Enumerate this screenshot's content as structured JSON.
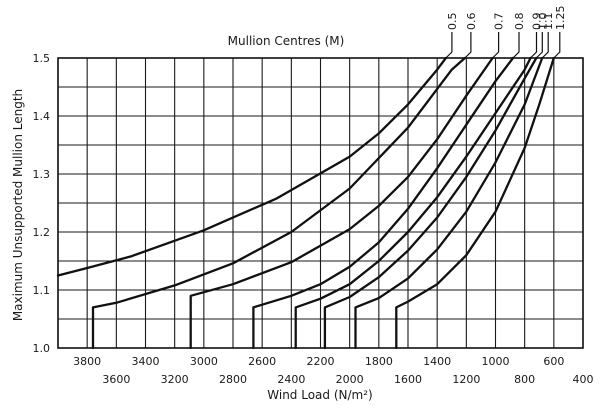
{
  "chart_data": {
    "type": "line",
    "title": "",
    "legend_title": "Mullion Centres (M)",
    "xlabel": "Wind Load (N/m²)",
    "ylabel": "Maximum Unsupported Mullion Length",
    "xlim": [
      4000,
      400
    ],
    "ylim": [
      1.0,
      1.5
    ],
    "x_reversed": true,
    "grid": true,
    "x_ticks_top_row": [
      3800,
      3400,
      3000,
      2600,
      2200,
      1800,
      1400,
      1000,
      600
    ],
    "x_ticks_bottom_row": [
      3600,
      3200,
      2800,
      2400,
      2000,
      1600,
      1200,
      800,
      400
    ],
    "y_ticks": [
      1.0,
      1.1,
      1.2,
      1.3,
      1.4,
      1.5
    ],
    "y_tick_labels": [
      "1.0",
      "1.1",
      "1.2",
      "1.3",
      "1.4",
      "1.5"
    ],
    "series": [
      {
        "name": "0.5",
        "points": [
          [
            4000,
            1.125
          ],
          [
            3800,
            1.138
          ],
          [
            3500,
            1.158
          ],
          [
            3000,
            1.203
          ],
          [
            2500,
            1.258
          ],
          [
            2000,
            1.33
          ],
          [
            1800,
            1.37
          ],
          [
            1600,
            1.42
          ],
          [
            1400,
            1.48
          ],
          [
            1340,
            1.5
          ]
        ]
      },
      {
        "name": "0.6",
        "points": [
          [
            3760,
            1.0
          ],
          [
            3760,
            1.07
          ],
          [
            3600,
            1.078
          ],
          [
            3200,
            1.108
          ],
          [
            2800,
            1.146
          ],
          [
            2400,
            1.2
          ],
          [
            2000,
            1.275
          ],
          [
            1600,
            1.38
          ],
          [
            1300,
            1.48
          ],
          [
            1210,
            1.5
          ]
        ]
      },
      {
        "name": "0.7",
        "points": [
          [
            3090,
            1.0
          ],
          [
            3090,
            1.09
          ],
          [
            2800,
            1.11
          ],
          [
            2400,
            1.148
          ],
          [
            2000,
            1.205
          ],
          [
            1800,
            1.245
          ],
          [
            1600,
            1.295
          ],
          [
            1400,
            1.36
          ],
          [
            1200,
            1.435
          ],
          [
            1020,
            1.5
          ]
        ]
      },
      {
        "name": "0.8",
        "points": [
          [
            2660,
            1.0
          ],
          [
            2660,
            1.07
          ],
          [
            2400,
            1.09
          ],
          [
            2200,
            1.11
          ],
          [
            2000,
            1.14
          ],
          [
            1800,
            1.182
          ],
          [
            1600,
            1.24
          ],
          [
            1400,
            1.31
          ],
          [
            1200,
            1.385
          ],
          [
            1000,
            1.46
          ],
          [
            880,
            1.5
          ]
        ]
      },
      {
        "name": "0.9",
        "points": [
          [
            2370,
            1.0
          ],
          [
            2370,
            1.07
          ],
          [
            2200,
            1.085
          ],
          [
            2000,
            1.11
          ],
          [
            1800,
            1.15
          ],
          [
            1600,
            1.2
          ],
          [
            1400,
            1.26
          ],
          [
            1200,
            1.33
          ],
          [
            1000,
            1.405
          ],
          [
            800,
            1.48
          ],
          [
            760,
            1.5
          ]
        ]
      },
      {
        "name": "1.0",
        "points": [
          [
            2170,
            1.0
          ],
          [
            2170,
            1.07
          ],
          [
            2000,
            1.088
          ],
          [
            1800,
            1.122
          ],
          [
            1600,
            1.168
          ],
          [
            1400,
            1.225
          ],
          [
            1200,
            1.295
          ],
          [
            1000,
            1.375
          ],
          [
            800,
            1.465
          ],
          [
            720,
            1.5
          ]
        ]
      },
      {
        "name": "1.1",
        "points": [
          [
            1960,
            1.0
          ],
          [
            1960,
            1.07
          ],
          [
            1800,
            1.086
          ],
          [
            1600,
            1.12
          ],
          [
            1400,
            1.17
          ],
          [
            1200,
            1.235
          ],
          [
            1000,
            1.32
          ],
          [
            800,
            1.42
          ],
          [
            680,
            1.5
          ]
        ]
      },
      {
        "name": "1.25",
        "points": [
          [
            1680,
            1.0
          ],
          [
            1680,
            1.07
          ],
          [
            1600,
            1.08
          ],
          [
            1400,
            1.11
          ],
          [
            1200,
            1.16
          ],
          [
            1000,
            1.235
          ],
          [
            800,
            1.345
          ],
          [
            700,
            1.42
          ],
          [
            600,
            1.5
          ]
        ]
      }
    ]
  }
}
